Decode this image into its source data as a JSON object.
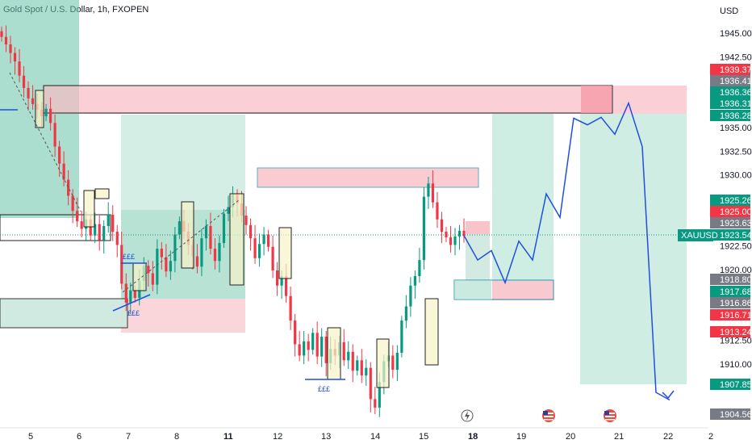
{
  "header": {
    "title": "Gold Spot / U.S. Dollar, 1h, FXOPEN",
    "currency": "USD",
    "symbol": "XAUUSD"
  },
  "chart_data": {
    "type": "candlestick",
    "symbol": "XAUUSD",
    "ylim": [
      1904.0,
      1947.5
    ],
    "y_ticks": [
      "1945.00",
      "1942.50",
      "1935.00",
      "1932.50",
      "1930.00",
      "1922.50",
      "1920.00",
      "1912.50",
      "1910.00"
    ],
    "x_ticks": [
      "5",
      "6",
      "7",
      "8",
      "11",
      "12",
      "13",
      "14",
      "15",
      "18",
      "19",
      "20",
      "21",
      "22",
      "2"
    ],
    "x_ticks_bold": [
      "11",
      "18"
    ],
    "price_labels": [
      {
        "value": "1939.37",
        "color": "#f23645"
      },
      {
        "value": "1936.41",
        "color": "#787b86"
      },
      {
        "value": "1936.36",
        "color": "#089981"
      },
      {
        "value": "1936.31",
        "color": "#089981"
      },
      {
        "value": "1936.28",
        "color": "#089981"
      },
      {
        "value": "1925.26",
        "color": "#089981"
      },
      {
        "value": "1925.00",
        "color": "#f23645"
      },
      {
        "value": "1923.63",
        "color": "#787b86"
      },
      {
        "value": "1923.54",
        "color": "#089981"
      },
      {
        "value": "1918.80",
        "color": "#787b86"
      },
      {
        "value": "1917.68",
        "color": "#089981"
      },
      {
        "value": "1916.86",
        "color": "#787b86"
      },
      {
        "value": "1916.71",
        "color": "#f23645"
      },
      {
        "value": "1913.24",
        "color": "#f23645"
      },
      {
        "value": "1907.85",
        "color": "#089981"
      },
      {
        "value": "1904.56",
        "color": "#787b86"
      }
    ],
    "current_price": "1923.54",
    "candle_closes": [
      1944.6,
      1943.8,
      1942.9,
      1942.0,
      1940.5,
      1939.2,
      1938.1,
      1937.5,
      1936.9,
      1936.2,
      1937.0,
      1935.5,
      1933.0,
      1931.2,
      1929.5,
      1927.8,
      1926.2,
      1925.1,
      1924.3,
      1925.3,
      1923.6,
      1924.8,
      1923.1,
      1924.6,
      1925.8,
      1924.0,
      1922.6,
      1918.5,
      1916.5,
      1917.8,
      1917.0,
      1918.8,
      1920.4,
      1919.6,
      1918.4,
      1922.2,
      1921.3,
      1919.8,
      1920.9,
      1923.7,
      1925.1,
      1924.0,
      1922.6,
      1921.4,
      1920.3,
      1923.3,
      1924.6,
      1922.2,
      1920.9,
      1922.8,
      1925.9,
      1926.6,
      1927.9,
      1927.0,
      1925.7,
      1924.7,
      1923.3,
      1921.2,
      1922.7,
      1923.7,
      1922.4,
      1919.9,
      1918.3,
      1919.3,
      1917.2,
      1914.6,
      1912.1,
      1910.9,
      1912.4,
      1911.5,
      1913.3,
      1910.8,
      1912.9,
      1910.1,
      1911.6,
      1910.9,
      1912.3,
      1910.4,
      1911.3,
      1909.3,
      1910.4,
      1908.8,
      1909.6,
      1906.3,
      1905.4,
      1908.1,
      1910.3,
      1910.9,
      1909.4,
      1911.2,
      1914.6,
      1916.1,
      1918.3,
      1919.3,
      1921.0,
      1927.7,
      1929.1,
      1927.1,
      1925.3,
      1924.0,
      1923.4,
      1922.6,
      1923.5,
      1924.1,
      1923.54
    ],
    "forecast_path": [
      [
        1923.6,
        0
      ],
      [
        1921.0,
        1
      ],
      [
        1922.0,
        2
      ],
      [
        1918.6,
        3
      ],
      [
        1923.0,
        4
      ],
      [
        1921.0,
        5
      ],
      [
        1928.0,
        6
      ],
      [
        1925.5,
        7
      ],
      [
        1936.0,
        8
      ],
      [
        1935.3,
        9
      ],
      [
        1936.1,
        10
      ],
      [
        1934.3,
        11
      ],
      [
        1937.6,
        12
      ],
      [
        1933.0,
        13
      ],
      [
        1907.0,
        14
      ],
      [
        1906.2,
        15
      ]
    ],
    "annotations": [
      "£££",
      "£££",
      "£££"
    ]
  }
}
